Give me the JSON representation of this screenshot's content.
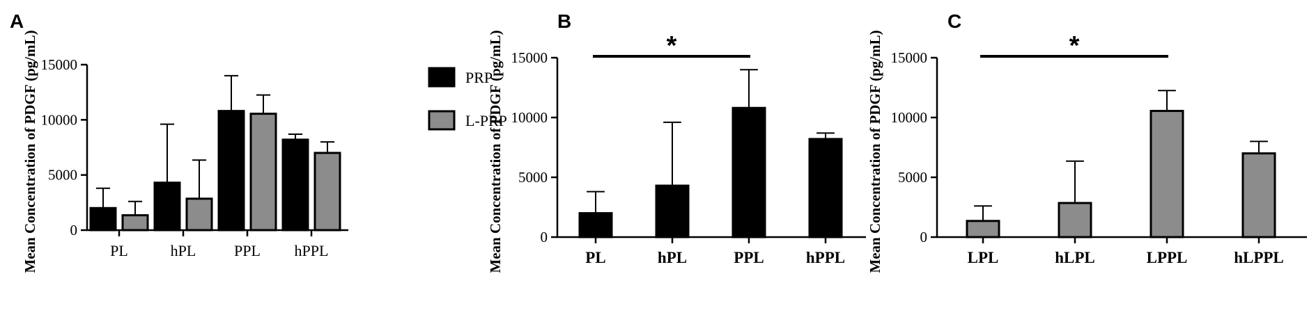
{
  "chart_data": [
    {
      "panel": "A",
      "type": "bar",
      "ylabel": "Mean Concentration of PDGF (pg/mL)",
      "ylim": [
        0,
        15000
      ],
      "yticks": [
        0,
        5000,
        10000,
        15000
      ],
      "categories": [
        "PL",
        "hPL",
        "PPL",
        "hPPL"
      ],
      "series": [
        {
          "name": "PRP",
          "color": "#000000",
          "values": [
            2000,
            4300,
            10800,
            8200
          ],
          "errors": [
            1800,
            5300,
            3200,
            500
          ]
        },
        {
          "name": "L-PRP",
          "color": "#8c8c8c",
          "values": [
            1350,
            2850,
            10550,
            7000
          ],
          "errors": [
            1250,
            3500,
            1700,
            1000
          ]
        }
      ],
      "legend": "right"
    },
    {
      "panel": "B",
      "type": "bar",
      "ylabel": "Mean Concentration of PDGF (pg/mL)",
      "ylim": [
        0,
        15000
      ],
      "yticks": [
        0,
        5000,
        10000,
        15000
      ],
      "categories": [
        "PL",
        "hPL",
        "PPL",
        "hPPL"
      ],
      "series": [
        {
          "color": "#000000",
          "values": [
            2000,
            4300,
            10800,
            8200
          ],
          "errors": [
            1800,
            5300,
            3200,
            500
          ]
        }
      ],
      "significance": {
        "from": 0,
        "to": 2,
        "label": "*"
      }
    },
    {
      "panel": "C",
      "type": "bar",
      "ylabel": "Mean Concentration of PDGF (pg/mL)",
      "ylim": [
        0,
        15000
      ],
      "yticks": [
        0,
        5000,
        10000,
        15000
      ],
      "categories": [
        "LPL",
        "hLPL",
        "LPPL",
        "hLPPL"
      ],
      "series": [
        {
          "color": "#8c8c8c",
          "values": [
            1350,
            2850,
            10550,
            7000
          ],
          "errors": [
            1250,
            3500,
            1700,
            1000
          ]
        }
      ],
      "significance": {
        "from": 0,
        "to": 2,
        "label": "*"
      }
    }
  ]
}
